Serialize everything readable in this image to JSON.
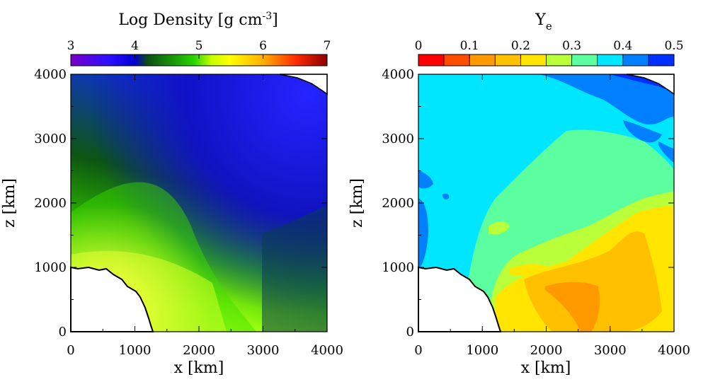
{
  "figure": {
    "left_title": "Log Density [g cm",
    "left_title_sup": "-3",
    "left_title_close": "]",
    "right_title": "Y",
    "right_title_sub": "e"
  },
  "chart_data": [
    {
      "type": "heatmap",
      "title": "Log Density [g cm^-3]",
      "xlabel": "x [km]",
      "ylabel": "z [km]",
      "xlim": [
        0,
        4000
      ],
      "ylim": [
        0,
        4000
      ],
      "xticks": [
        "0",
        "1000",
        "2000",
        "3000",
        "4000"
      ],
      "yticks": [
        "0",
        "1000",
        "2000",
        "3000",
        "4000"
      ],
      "colorbar": {
        "range": [
          3,
          7
        ],
        "ticks": [
          "3",
          "4",
          "5",
          "6",
          "7"
        ],
        "stops": [
          "#7a00c8",
          "#1010ff",
          "#0b5010",
          "#26d400",
          "#ffff00",
          "#ff2a00",
          "#8a0000"
        ]
      },
      "description_regions": [
        {
          "region": "lower-left near surface",
          "value_range": [
            4.8,
            5.1
          ]
        },
        {
          "region": "upper-right",
          "value_range": [
            3.6,
            3.9
          ]
        }
      ]
    },
    {
      "type": "heatmap",
      "title": "Ye",
      "xlabel": "x [km]",
      "ylabel": "z [km]",
      "xlim": [
        0,
        4000
      ],
      "ylim": [
        0,
        4000
      ],
      "xticks": [
        "0",
        "1000",
        "2000",
        "3000",
        "4000"
      ],
      "yticks": [
        "0",
        "1000",
        "2000",
        "3000",
        "4000"
      ],
      "colorbar": {
        "range": [
          0,
          0.5
        ],
        "ticks": [
          "0",
          "0.1",
          "0.2",
          "0.3",
          "0.4",
          "0.5"
        ],
        "levels": [
          {
            "from": 0.0,
            "to": 0.05,
            "color": "#ff0000"
          },
          {
            "from": 0.05,
            "to": 0.1,
            "color": "#ff4d00"
          },
          {
            "from": 0.1,
            "to": 0.15,
            "color": "#ff9900"
          },
          {
            "from": 0.15,
            "to": 0.2,
            "color": "#ffc000"
          },
          {
            "from": 0.2,
            "to": 0.25,
            "color": "#ffe500"
          },
          {
            "from": 0.25,
            "to": 0.3,
            "color": "#b9ff3a"
          },
          {
            "from": 0.3,
            "to": 0.35,
            "color": "#5cffa0"
          },
          {
            "from": 0.35,
            "to": 0.4,
            "color": "#00e6ff"
          },
          {
            "from": 0.4,
            "to": 0.45,
            "color": "#0080ff"
          },
          {
            "from": 0.45,
            "to": 0.5,
            "color": "#0030ff"
          }
        ]
      }
    }
  ]
}
